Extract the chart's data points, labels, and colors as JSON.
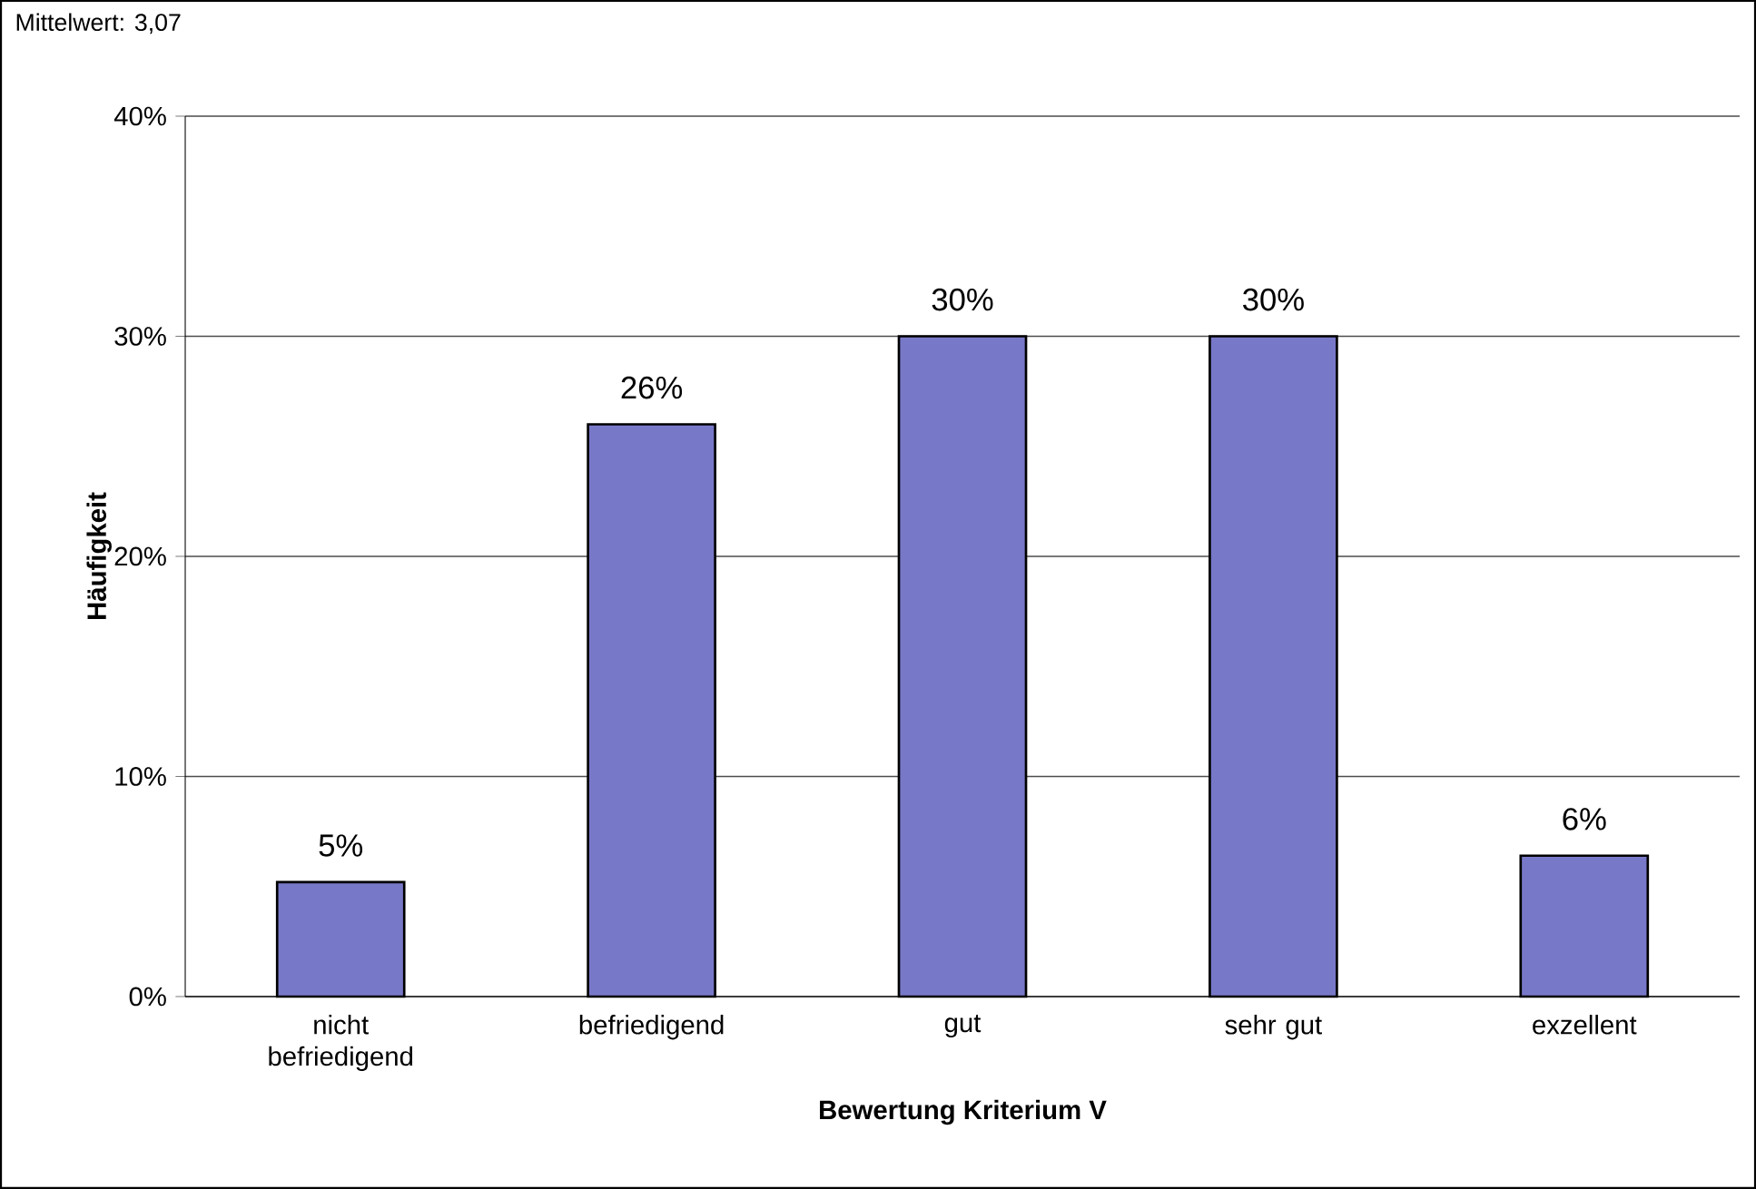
{
  "chart_data": {
    "type": "bar",
    "categories": [
      "nicht befriedigend",
      "befriedigend",
      "gut",
      "sehr gut",
      "exzellent"
    ],
    "values": [
      5.2,
      26,
      30,
      30,
      6.4
    ],
    "value_labels": [
      "5%",
      "26%",
      "30%",
      "30%",
      "6%"
    ],
    "color": "#7878c8",
    "xlabel": "Bewertung Kriterium V",
    "ylabel": "Häufigkeit",
    "annotations": [
      "Mittelwert: 3,07"
    ],
    "ylim": [
      0,
      40
    ],
    "yticks": [
      {
        "value": 0,
        "label": "0%"
      },
      {
        "value": 10,
        "label": "10%"
      },
      {
        "value": 20,
        "label": "20%"
      },
      {
        "value": 30,
        "label": "30%"
      },
      {
        "value": 40,
        "label": "40%"
      }
    ],
    "grid": "y"
  }
}
